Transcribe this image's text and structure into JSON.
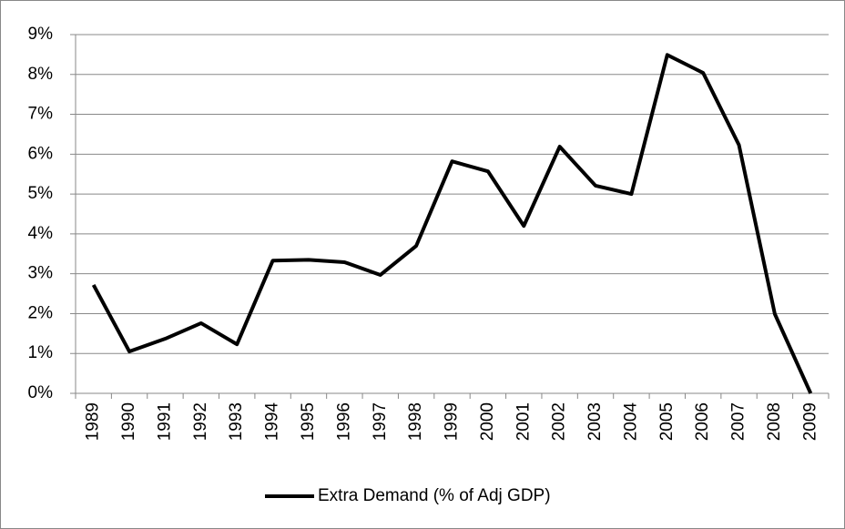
{
  "chart_data": {
    "type": "line",
    "categories": [
      "1989",
      "1990",
      "1991",
      "1992",
      "1993",
      "1994",
      "1995",
      "1996",
      "1997",
      "1998",
      "1999",
      "2000",
      "2001",
      "2002",
      "2003",
      "2004",
      "2005",
      "2006",
      "2007",
      "2008",
      "2009"
    ],
    "series": [
      {
        "name": "Extra Demand (% of Adj GDP)",
        "color": "#000000",
        "values": [
          2.72,
          1.05,
          1.37,
          1.76,
          1.23,
          3.33,
          3.35,
          3.29,
          2.97,
          3.7,
          5.82,
          5.57,
          4.2,
          6.19,
          5.21,
          5.0,
          8.49,
          8.04,
          6.23,
          1.99,
          0
        ]
      }
    ],
    "ylim": [
      0,
      9
    ],
    "yticks": [
      {
        "value": 0,
        "label": "0%"
      },
      {
        "value": 1,
        "label": "1%"
      },
      {
        "value": 2,
        "label": "2%"
      },
      {
        "value": 3,
        "label": "3%"
      },
      {
        "value": 4,
        "label": "4%"
      },
      {
        "value": 5,
        "label": "5%"
      },
      {
        "value": 6,
        "label": "6%"
      },
      {
        "value": 7,
        "label": "7%"
      },
      {
        "value": 8,
        "label": "8%"
      },
      {
        "value": 9,
        "label": "9%"
      }
    ],
    "grid": true,
    "legend": "bottom"
  }
}
